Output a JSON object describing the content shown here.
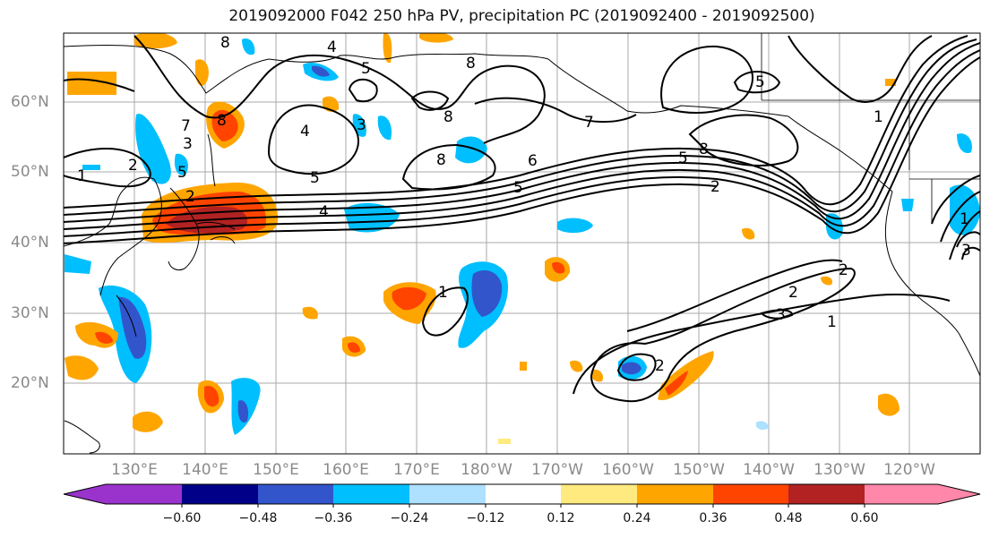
{
  "title": "2019092000 F042 250 hPa PV, precipitation PC (2019092400 - 2019092500)",
  "lat_labels": [
    "60°N",
    "50°N",
    "40°N",
    "30°N",
    "20°N"
  ],
  "lon_labels": [
    "130°E",
    "140°E",
    "150°E",
    "160°E",
    "170°E",
    "180°W",
    "170°W",
    "160°W",
    "150°W",
    "140°W",
    "130°W",
    "120°W"
  ],
  "colorbar": {
    "tick_labels": [
      "−0.60",
      "−0.48",
      "−0.36",
      "−0.24",
      "−0.12",
      "0.12",
      "0.24",
      "0.36",
      "0.48",
      "0.60"
    ],
    "colors": [
      "#9933cc",
      "#000088",
      "#3355cc",
      "#00bfff",
      "#aee0ff",
      "#ffffff",
      "#ffea80",
      "#ffa500",
      "#ff4400",
      "#b22222",
      "#ff88aa"
    ]
  },
  "contour_labels": [
    "8",
    "4",
    "5",
    "8",
    "4",
    "3",
    "8",
    "5",
    "7",
    "8",
    "5",
    "1",
    "2",
    "4",
    "5",
    "8",
    "1",
    "2",
    "5",
    "6",
    "5",
    "2",
    "3",
    "7",
    "8",
    "1",
    "2",
    "2",
    "3",
    "1",
    "2",
    "1",
    "3"
  ]
}
